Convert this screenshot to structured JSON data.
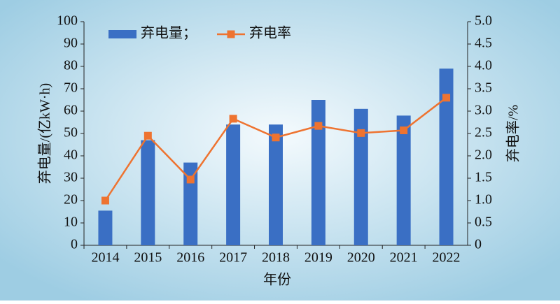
{
  "chart_data": {
    "type": "bar",
    "categories": [
      "2014",
      "2015",
      "2016",
      "2017",
      "2018",
      "2019",
      "2020",
      "2021",
      "2022"
    ],
    "series": [
      {
        "name": "弃电量；",
        "type": "bar",
        "color": "#3a6fc4",
        "values": [
          15.5,
          47,
          37,
          54,
          54,
          65,
          61,
          58,
          79
        ]
      },
      {
        "name": "弃电率",
        "type": "line",
        "axis": "y2",
        "color": "#ee7330",
        "values": [
          1.0,
          2.45,
          1.47,
          2.83,
          2.41,
          2.67,
          2.51,
          2.57,
          3.3
        ]
      }
    ],
    "xlabel": "年份",
    "ylabel": "弃电量/(亿kW·h)",
    "y2label": "弃电率/%",
    "ylim": [
      0,
      100
    ],
    "yticks": [
      0,
      10,
      20,
      30,
      40,
      50,
      60,
      70,
      80,
      90,
      100
    ],
    "y2lim": [
      0,
      5
    ],
    "y2ticks": [
      0,
      0.5,
      {
        "value": 1,
        "label": "1.0"
      },
      1.5,
      {
        "value": 2,
        "label": "2.0"
      },
      2.5,
      {
        "value": 3,
        "label": "3.0"
      },
      3.5,
      {
        "value": 4,
        "label": "4.0"
      },
      4.5,
      {
        "value": 5,
        "label": "5.0"
      }
    ],
    "legend": "top"
  }
}
